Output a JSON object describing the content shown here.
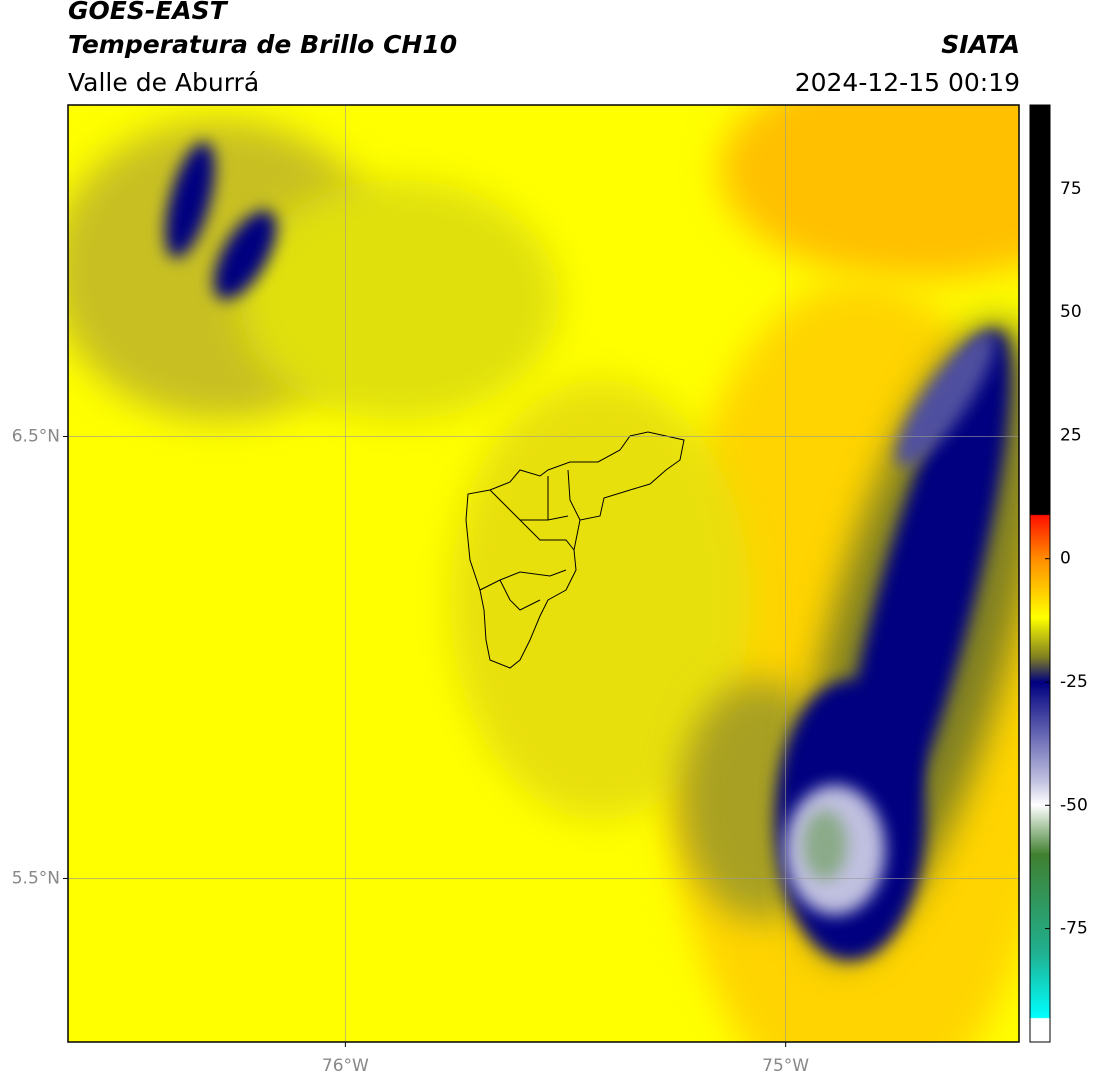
{
  "header": {
    "satellite": "GOES-EAST",
    "product": "Temperatura de Brillo CH10",
    "region": "Valle de Aburrá",
    "agency": "SIATA",
    "datetime": "2024-12-15 00:19"
  },
  "map": {
    "xlim": [
      -76.63,
      -74.47
    ],
    "ylim": [
      5.13,
      7.25
    ],
    "xticks": [
      {
        "value": -76,
        "label": "76°W"
      },
      {
        "value": -75,
        "label": "75°W"
      }
    ],
    "yticks": [
      {
        "value": 6.5,
        "label": "6.5°N"
      },
      {
        "value": 5.5,
        "label": "5.5°N"
      }
    ],
    "grid": true
  },
  "colorbar": {
    "clim": [
      -98,
      92
    ],
    "ticks": [
      75,
      50,
      25,
      0,
      -25,
      -50,
      -75
    ]
  }
}
